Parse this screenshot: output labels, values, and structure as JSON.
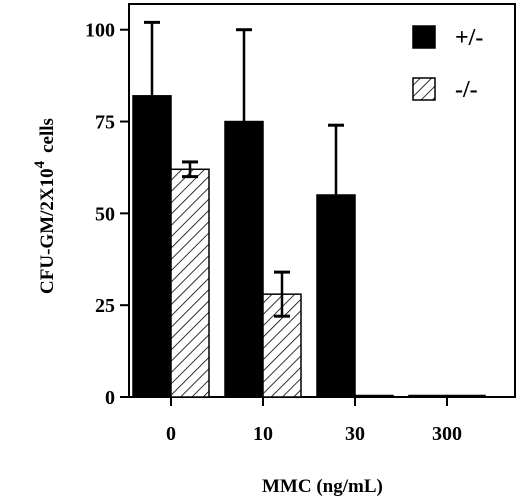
{
  "chart_data": {
    "type": "bar",
    "categories": [
      "0",
      "10",
      "30",
      "300"
    ],
    "series": [
      {
        "name": "+/-",
        "values": [
          82,
          75,
          55,
          0
        ],
        "error": [
          20,
          25,
          19,
          0
        ],
        "fill": "solid"
      },
      {
        "name": "-/-",
        "values": [
          62,
          28,
          0,
          0
        ],
        "error": [
          2,
          6,
          0,
          0
        ],
        "fill": "hatched"
      }
    ],
    "title": "",
    "xlabel": "MMC  (ng/mL)",
    "ylabel_main": "CFU-GM/2X10",
    "ylabel_exp": "4",
    "ylabel_suffix": "cells",
    "ylim": [
      0,
      107
    ],
    "yticks": [
      "0",
      "25",
      "50",
      "75",
      "100"
    ],
    "legend_position": "top-right",
    "colors": {
      "bar": "#000000",
      "background": "#ffffff"
    }
  }
}
